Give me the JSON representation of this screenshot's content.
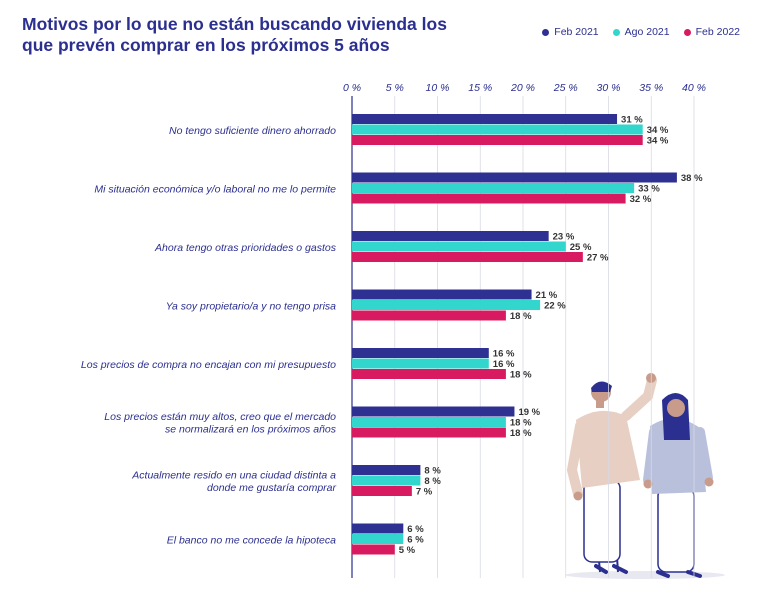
{
  "title_lines": [
    "Motivos por lo que no están buscando vivienda los",
    "que prevén comprar en los próximos 5 años"
  ],
  "chart_data": {
    "type": "bar",
    "orientation": "horizontal",
    "title": "Motivos por lo que no están buscando vivienda los que prevén comprar en los próximos 5 años",
    "xlim": [
      0,
      40
    ],
    "x_ticks": [
      0,
      5,
      10,
      15,
      20,
      25,
      30,
      35,
      40
    ],
    "x_tick_labels": [
      "0 %",
      "5 %",
      "10 %",
      "15 %",
      "20 %",
      "25 %",
      "30 %",
      "35 %",
      "40 %"
    ],
    "grid": true,
    "legend_position": "top-right",
    "categories": [
      [
        "No tengo suficiente dinero ahorrado"
      ],
      [
        "Mi situación económica y/o laboral no me lo permite"
      ],
      [
        "Ahora tengo otras prioridades o gastos"
      ],
      [
        "Ya soy propietario/a y no tengo prisa"
      ],
      [
        "Los precios de compra no encajan con mi presupuesto"
      ],
      [
        "Los precios están muy altos, creo que el mercado",
        "se normalizará en los próximos años"
      ],
      [
        "Actualmente resido en una ciudad distinta a",
        "donde me gustaría comprar"
      ],
      [
        "El banco no me concede la hipoteca"
      ]
    ],
    "series": [
      {
        "name": "Feb 2021",
        "color": "#2e3192",
        "values": [
          31,
          38,
          23,
          21,
          16,
          19,
          8,
          6
        ]
      },
      {
        "name": "Ago 2021",
        "color": "#33d6cc",
        "values": [
          34,
          33,
          25,
          22,
          16,
          18,
          8,
          6
        ]
      },
      {
        "name": "Feb 2022",
        "color": "#d81b60",
        "values": [
          34,
          32,
          27,
          18,
          18,
          18,
          7,
          5
        ]
      }
    ]
  }
}
